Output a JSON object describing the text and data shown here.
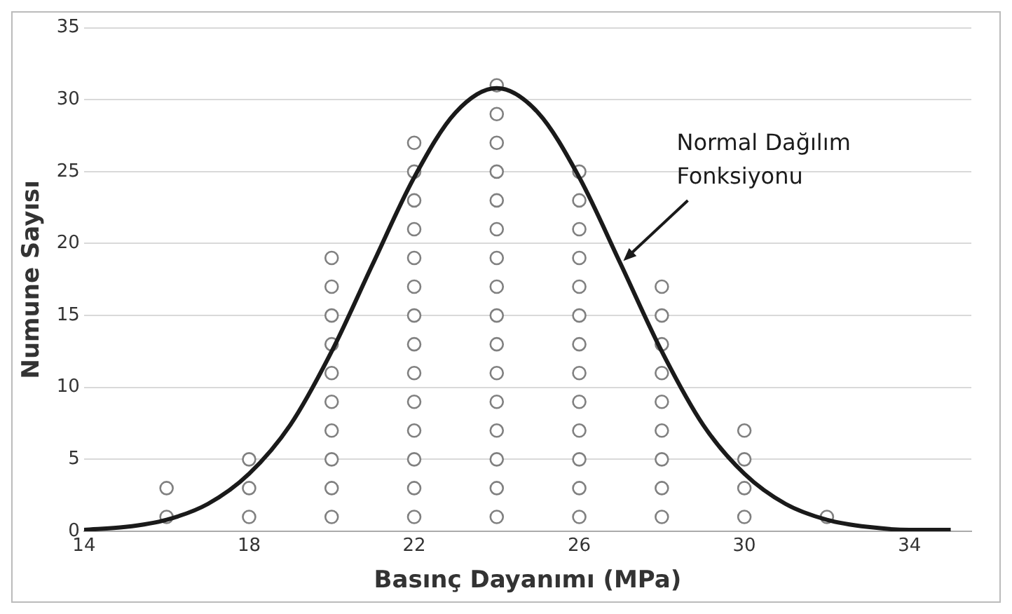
{
  "chart_data": {
    "type": "scatter",
    "xlabel": "Basınç Dayanımı (MPa)",
    "ylabel": "Numune Sayısı",
    "xlim": [
      14,
      35.5
    ],
    "xticks": [
      14,
      18,
      22,
      26,
      30,
      34
    ],
    "ylim": [
      0,
      35
    ],
    "yticks": [
      0,
      5,
      10,
      15,
      20,
      25,
      30,
      35
    ],
    "grid": "y",
    "legend": false,
    "series": [
      {
        "type": "scatter",
        "color": "#808080",
        "marker": "circle",
        "x": [
          16,
          16,
          18,
          18,
          18,
          20,
          20,
          20,
          20,
          20,
          20,
          20,
          20,
          20,
          20,
          22,
          22,
          22,
          22,
          22,
          22,
          22,
          22,
          22,
          22,
          22,
          22,
          22,
          22,
          24,
          24,
          24,
          24,
          24,
          24,
          24,
          24,
          24,
          24,
          24,
          24,
          24,
          24,
          24,
          24,
          26,
          26,
          26,
          26,
          26,
          26,
          26,
          26,
          26,
          26,
          26,
          26,
          26,
          28,
          28,
          28,
          28,
          28,
          28,
          28,
          28,
          28,
          30,
          30,
          30,
          30,
          32
        ],
        "values": [
          1,
          3,
          1,
          3,
          5,
          1,
          3,
          5,
          7,
          9,
          11,
          13,
          15,
          17,
          19,
          1,
          3,
          5,
          7,
          9,
          11,
          13,
          15,
          17,
          19,
          21,
          23,
          25,
          27,
          1,
          3,
          5,
          7,
          9,
          11,
          13,
          15,
          17,
          19,
          21,
          23,
          25,
          27,
          29,
          31,
          1,
          3,
          5,
          7,
          9,
          11,
          13,
          15,
          17,
          19,
          21,
          23,
          25,
          1,
          3,
          5,
          7,
          9,
          11,
          13,
          15,
          17,
          1,
          3,
          5,
          7,
          1
        ]
      },
      {
        "type": "line",
        "color": "#1a1a1a",
        "marker": "none",
        "line_style": "solid",
        "x": [
          14,
          15,
          16,
          17,
          18,
          19,
          20,
          21,
          22,
          23,
          24,
          25,
          26,
          27,
          28,
          29,
          30,
          31,
          32,
          33,
          34,
          35
        ],
        "values": [
          0.1,
          0.3,
          0.8,
          1.9,
          4.0,
          7.4,
          12.5,
          18.6,
          24.6,
          29.1,
          30.8,
          29.1,
          24.6,
          18.6,
          12.5,
          7.4,
          4.0,
          1.9,
          0.8,
          0.3,
          0.1,
          0.1
        ]
      }
    ],
    "annotations": [
      {
        "text": "Normal Dağılım Fonksiyonu",
        "x": 27,
        "y": 18.6
      }
    ]
  }
}
